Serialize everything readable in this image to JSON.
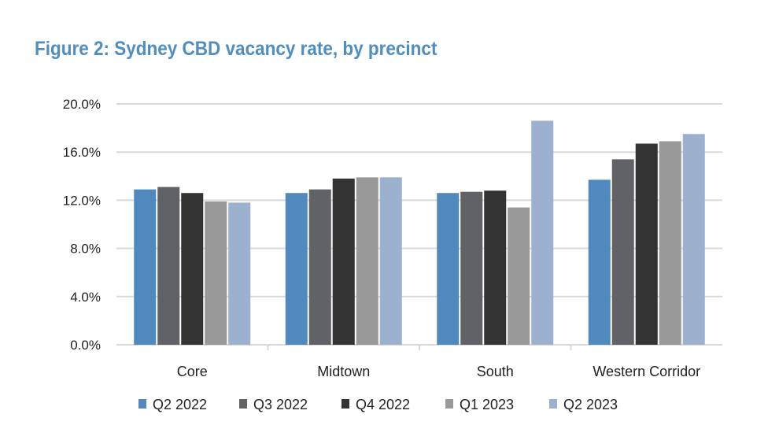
{
  "chart_data": {
    "type": "bar",
    "title": "Figure 2: Sydney CBD vacancy rate, by precinct",
    "xlabel": "",
    "ylabel": "",
    "categories": [
      "Core",
      "Midtown",
      "South",
      "Western Corridor"
    ],
    "ylim": [
      0,
      20
    ],
    "yticks": [
      "0.0%",
      "4.0%",
      "8.0%",
      "12.0%",
      "16.0%",
      "20.0%"
    ],
    "grid": true,
    "legend_position": "bottom",
    "series": [
      {
        "name": "Q2 2022",
        "color": "#4f89bd",
        "values": [
          12.9,
          12.6,
          12.6,
          13.7
        ]
      },
      {
        "name": "Q3 2022",
        "color": "#616266",
        "values": [
          13.1,
          12.9,
          12.7,
          15.4
        ]
      },
      {
        "name": "Q4 2022",
        "color": "#333333",
        "values": [
          12.6,
          13.8,
          12.8,
          16.7
        ]
      },
      {
        "name": "Q1 2023",
        "color": "#999999",
        "values": [
          11.9,
          13.9,
          11.4,
          16.9
        ]
      },
      {
        "name": "Q2 2023",
        "color": "#9cb1cd",
        "values": [
          11.8,
          13.9,
          18.6,
          17.5
        ]
      }
    ]
  }
}
